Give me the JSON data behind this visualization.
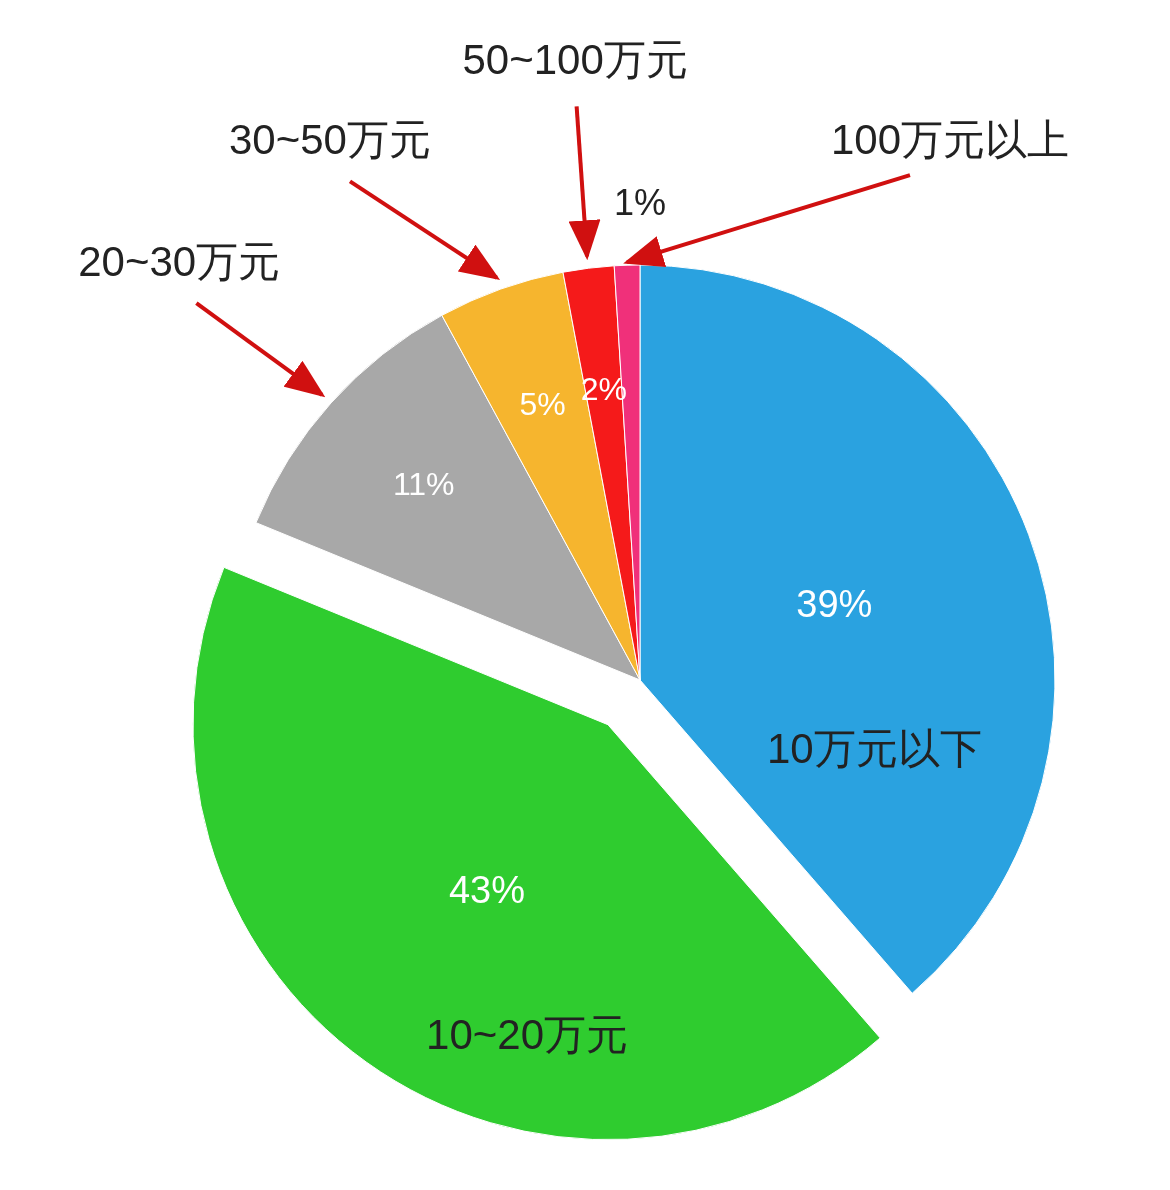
{
  "chart_data": {
    "type": "pie",
    "categories": [
      "10万元以下",
      "10~20万元",
      "20~30万元",
      "30~50万元",
      "50~100万元",
      "100万元以上"
    ],
    "values": [
      39,
      43,
      11,
      5,
      2,
      1
    ],
    "colors": [
      "#2aa2e0",
      "#2fcc2f",
      "#a8a8a8",
      "#f6b52e",
      "#f51a1a",
      "#f0307a"
    ],
    "value_labels": [
      "39%",
      "43%",
      "11%",
      "5%",
      "2%",
      "1%"
    ]
  }
}
